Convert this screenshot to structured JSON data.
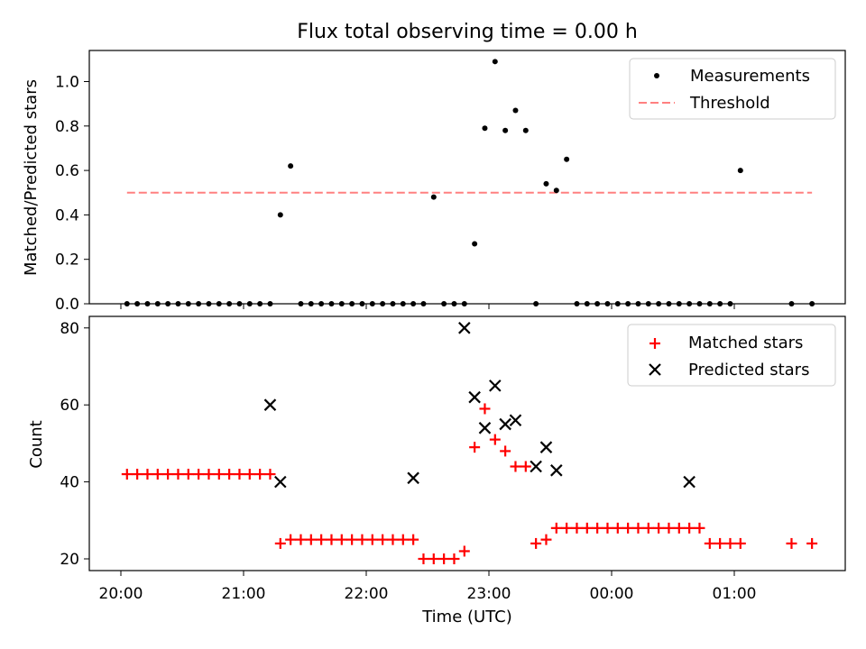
{
  "chart_data": [
    {
      "type": "scatter",
      "title": "Flux total observing time = 0.00 h",
      "xlabel": "",
      "ylabel": "Matched/Predicted stars",
      "xlim": [
        "19:45",
        "01:55"
      ],
      "ylim": [
        0,
        1.15
      ],
      "yticks": [
        "0.0",
        "0.2",
        "0.4",
        "0.6",
        "0.8",
        "1.0"
      ],
      "legend_position": "top-right",
      "series": [
        {
          "name": "Measurements",
          "color": "#000000",
          "marker": "dot",
          "x": [
            "20:03",
            "20:08",
            "20:13",
            "20:18",
            "20:23",
            "20:28",
            "20:33",
            "20:38",
            "20:43",
            "20:48",
            "20:53",
            "20:58",
            "21:03",
            "21:08",
            "21:13",
            "21:18",
            "21:23",
            "21:28",
            "21:33",
            "21:38",
            "21:43",
            "21:48",
            "21:53",
            "21:58",
            "22:03",
            "22:08",
            "22:13",
            "22:18",
            "22:23",
            "22:28",
            "22:33",
            "22:38",
            "22:43",
            "22:48",
            "22:53",
            "22:58",
            "23:03",
            "23:08",
            "23:13",
            "23:18",
            "23:23",
            "23:28",
            "23:33",
            "23:38",
            "23:43",
            "23:48",
            "23:53",
            "23:58",
            "00:03",
            "00:08",
            "00:13",
            "00:18",
            "00:23",
            "00:28",
            "00:33",
            "00:38",
            "00:43",
            "00:48",
            "00:53",
            "00:58",
            "01:03",
            "01:28",
            "01:38"
          ],
          "y": [
            0,
            0,
            0,
            0,
            0,
            0,
            0,
            0,
            0,
            0,
            0,
            0,
            0,
            0,
            0,
            0.4,
            0.62,
            0,
            0,
            0,
            0,
            0,
            0,
            0,
            0,
            0,
            0,
            0,
            0,
            0,
            0.48,
            0,
            0,
            0,
            0.27,
            0.79,
            1.09,
            0.78,
            0.87,
            0.78,
            0,
            0.54,
            0.51,
            0.65,
            0,
            0,
            0,
            0,
            0,
            0,
            0,
            0,
            0,
            0,
            0,
            0,
            0,
            0,
            0,
            0,
            0.6,
            0,
            0
          ]
        },
        {
          "name": "Threshold",
          "color": "#ff8080",
          "style": "dashed",
          "x": [
            "20:03",
            "01:38"
          ],
          "y": [
            0.5,
            0.5
          ]
        }
      ]
    },
    {
      "type": "scatter",
      "title": "",
      "xlabel": "Time (UTC)",
      "ylabel": "Count",
      "xlim": [
        "19:45",
        "01:55"
      ],
      "ylim": [
        17,
        84
      ],
      "xticks": [
        "20:00",
        "21:00",
        "22:00",
        "23:00",
        "00:00",
        "01:00"
      ],
      "yticks": [
        "20",
        "40",
        "60",
        "80"
      ],
      "legend_position": "top-right",
      "series": [
        {
          "name": "Matched stars",
          "color": "#ff0000",
          "marker": "plus",
          "x": [
            "20:03",
            "20:08",
            "20:13",
            "20:18",
            "20:23",
            "20:28",
            "20:33",
            "20:38",
            "20:43",
            "20:48",
            "20:53",
            "20:58",
            "21:03",
            "21:08",
            "21:13",
            "21:18",
            "21:23",
            "21:28",
            "21:33",
            "21:38",
            "21:43",
            "21:48",
            "21:53",
            "21:58",
            "22:03",
            "22:08",
            "22:13",
            "22:18",
            "22:23",
            "22:28",
            "22:33",
            "22:38",
            "22:43",
            "22:48",
            "22:53",
            "22:58",
            "23:03",
            "23:08",
            "23:13",
            "23:18",
            "23:23",
            "23:28",
            "23:33",
            "23:38",
            "23:43",
            "23:48",
            "23:53",
            "23:58",
            "00:03",
            "00:08",
            "00:13",
            "00:18",
            "00:23",
            "00:28",
            "00:33",
            "00:38",
            "00:43",
            "00:48",
            "00:53",
            "00:58",
            "01:03",
            "01:28",
            "01:38"
          ],
          "y": [
            42,
            42,
            42,
            42,
            42,
            42,
            42,
            42,
            42,
            42,
            42,
            42,
            42,
            42,
            42,
            24,
            25,
            25,
            25,
            25,
            25,
            25,
            25,
            25,
            25,
            25,
            25,
            25,
            25,
            20,
            20,
            20,
            20,
            22,
            49,
            59,
            51,
            48,
            44,
            44,
            24,
            25,
            28,
            28,
            28,
            28,
            28,
            28,
            28,
            28,
            28,
            28,
            28,
            28,
            28,
            28,
            28,
            24,
            24,
            24,
            24,
            24,
            24
          ]
        },
        {
          "name": "Predicted stars",
          "color": "#000000",
          "marker": "x",
          "x": [
            "21:13",
            "21:18",
            "22:23",
            "22:48",
            "22:53",
            "22:58",
            "23:03",
            "23:08",
            "23:13",
            "23:23",
            "23:28",
            "23:33",
            "00:38"
          ],
          "y": [
            60,
            40,
            41,
            80,
            62,
            54,
            65,
            55,
            56,
            44,
            49,
            43,
            40
          ]
        }
      ]
    }
  ]
}
